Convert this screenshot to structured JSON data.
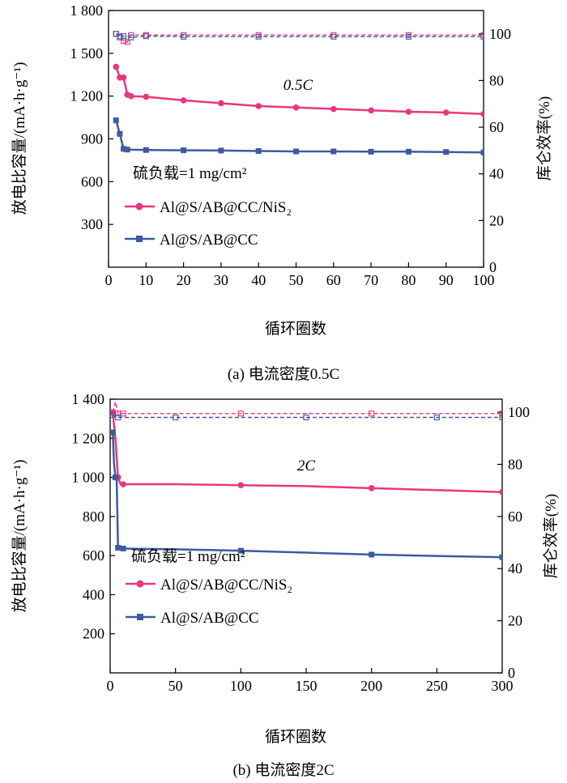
{
  "chart_data": [
    {
      "type": "line",
      "caption": "(a) 电流密度0.5C",
      "xlabel": "循环圈数",
      "ylabel": "放电比容量/(mA·h·g⁻¹)",
      "y2label": "库仑效率(%)",
      "annotation": "0.5C",
      "loading_label": "硫负载=1 mg/cm²",
      "xlim": [
        0,
        100
      ],
      "ylim": [
        0,
        1800
      ],
      "y2lim": [
        0,
        110
      ],
      "xticks": [
        "0",
        "10",
        "20",
        "30",
        "40",
        "50",
        "60",
        "70",
        "80",
        "90",
        "100"
      ],
      "yticks": [
        "300",
        "600",
        "900",
        "1 200",
        "1 500",
        "1 800"
      ],
      "y2ticks": [
        "0",
        "20",
        "40",
        "60",
        "80",
        "100"
      ],
      "legend": [
        "Al@S/AB@CC/NiS₂",
        "Al@S/AB@CC"
      ],
      "series": [
        {
          "name": "Al@S/AB@CC/NiS₂",
          "color": "#e8377e",
          "axis": "left",
          "x": [
            2,
            3,
            4,
            5,
            6,
            10,
            20,
            30,
            40,
            50,
            60,
            70,
            80,
            90,
            100
          ],
          "y": [
            1405,
            1330,
            1330,
            1210,
            1200,
            1195,
            1170,
            1150,
            1130,
            1120,
            1110,
            1100,
            1090,
            1085,
            1075
          ]
        },
        {
          "name": "Al@S/AB@CC",
          "color": "#3e5aa0",
          "axis": "left",
          "x": [
            2,
            3,
            4,
            5,
            10,
            20,
            30,
            40,
            50,
            60,
            70,
            80,
            90,
            100
          ],
          "y": [
            1030,
            935,
            830,
            825,
            822,
            820,
            818,
            815,
            812,
            812,
            810,
            810,
            808,
            805
          ]
        },
        {
          "name": "Al@S/AB@CC/NiS₂ CE",
          "color": "#e8377e",
          "axis": "right",
          "x": [
            2,
            3,
            4,
            5,
            6,
            10,
            20,
            40,
            60,
            80,
            100
          ],
          "y": [
            100,
            99,
            97,
            96.5,
            99.5,
            99.5,
            99.5,
            99.5,
            99.5,
            99.5,
            99.5
          ]
        },
        {
          "name": "Al@S/AB@CC CE",
          "color": "#3e5aa0",
          "axis": "right",
          "x": [
            2,
            3,
            4,
            6,
            10,
            20,
            40,
            60,
            80,
            100
          ],
          "y": [
            100,
            98.5,
            99,
            98.5,
            99,
            98.8,
            98.8,
            98.8,
            98.8,
            98.8
          ]
        }
      ]
    },
    {
      "type": "line",
      "caption": "(b) 电流密度2C",
      "xlabel": "循环圈数",
      "ylabel": "放电比容量/(mA·h·g⁻¹)",
      "y2label": "库仑效率(%)",
      "annotation": "2C",
      "loading_label": "硫负载=1 mg/cm²",
      "xlim": [
        0,
        300
      ],
      "ylim": [
        0,
        1400
      ],
      "y2lim": [
        0,
        105
      ],
      "xticks": [
        "0",
        "50",
        "100",
        "150",
        "200",
        "250",
        "300"
      ],
      "yticks": [
        "200",
        "400",
        "600",
        "800",
        "1 000",
        "1 200",
        "1 400"
      ],
      "y2ticks": [
        "0",
        "20",
        "40",
        "60",
        "80",
        "100"
      ],
      "legend": [
        "Al@S/AB@CC/NiS₂",
        "Al@S/AB@CC"
      ],
      "series": [
        {
          "name": "Al@S/AB@CC/NiS₂",
          "color": "#e8377e",
          "axis": "left",
          "x": [
            2,
            4,
            6,
            8,
            10,
            50,
            100,
            150,
            200,
            250,
            300
          ],
          "y": [
            1330,
            1200,
            1000,
            965,
            965,
            965,
            960,
            955,
            945,
            935,
            925
          ]
        },
        {
          "name": "Al@S/AB@CC",
          "color": "#3e5aa0",
          "axis": "left",
          "x": [
            2,
            3,
            4,
            5,
            6,
            8,
            10,
            50,
            100,
            150,
            200,
            250,
            300
          ],
          "y": [
            1230,
            1070,
            1000,
            980,
            640,
            638,
            636,
            632,
            625,
            615,
            605,
            598,
            592
          ]
        },
        {
          "name": "Al@S/AB@CC/NiS₂ CE",
          "color": "#e8377e",
          "axis": "right",
          "x": [
            2,
            4,
            6,
            8,
            10,
            50,
            100,
            150,
            200,
            250,
            300
          ],
          "y": [
            100,
            104,
            99.5,
            99.5,
            99.5,
            99.5,
            99.5,
            99.5,
            99.5,
            99.5,
            99.5
          ]
        },
        {
          "name": "Al@S/AB@CC CE",
          "color": "#3e5aa0",
          "axis": "right",
          "x": [
            2,
            4,
            6,
            10,
            50,
            100,
            150,
            200,
            250,
            300
          ],
          "y": [
            99,
            98,
            98,
            98,
            98,
            98,
            98,
            98,
            98,
            98
          ]
        }
      ]
    }
  ]
}
